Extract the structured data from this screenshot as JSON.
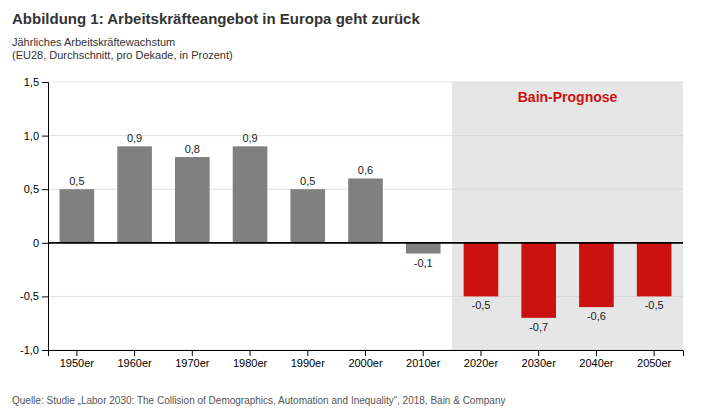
{
  "chart_data": {
    "type": "bar",
    "title": "Abbildung 1: Arbeitskräfteangebot in Europa geht zurück",
    "ylabel": [
      "Jährliches Arbeitskräftewachstum",
      "(EU28, Durchschnitt, pro Dekade, in Prozent)"
    ],
    "source": "Quelle: Studie „Labor 2030: The Collision of Demographics, Automation and Inequality“, 2018, Bain & Company",
    "categories": [
      "1950er",
      "1960er",
      "1970er",
      "1980er",
      "1990er",
      "2000er",
      "2010er",
      "2020er",
      "2030er",
      "2040er",
      "2050er"
    ],
    "values": [
      0.5,
      0.9,
      0.8,
      0.9,
      0.5,
      0.6,
      -0.1,
      -0.5,
      -0.7,
      -0.6,
      -0.5
    ],
    "value_labels": [
      "0,5",
      "0,9",
      "0,8",
      "0,9",
      "0,5",
      "0,6",
      "-0,1",
      "-0,5",
      "-0,7",
      "-0,6",
      "-0,5"
    ],
    "colors": [
      "#808080",
      "#808080",
      "#808080",
      "#808080",
      "#808080",
      "#808080",
      "#808080",
      "#cc1111",
      "#cc1111",
      "#cc1111",
      "#cc1111"
    ],
    "data_labels": true,
    "annotations": [
      {
        "text": "Bain-Prognose",
        "color": "#cc1111",
        "fill": "#e6e6e6",
        "categories": [
          "2020er",
          "2050er"
        ]
      }
    ],
    "ylim": [
      -1.0,
      1.5
    ],
    "yticks": [
      {
        "value": -1.0,
        "label": "-1,0"
      },
      {
        "value": -0.5,
        "label": "-0,5"
      },
      0,
      {
        "value": 0.5,
        "label": "0,5"
      },
      {
        "value": 1.0,
        "label": "1,0"
      },
      {
        "value": 1.5,
        "label": "1,5"
      }
    ],
    "grid": true
  }
}
